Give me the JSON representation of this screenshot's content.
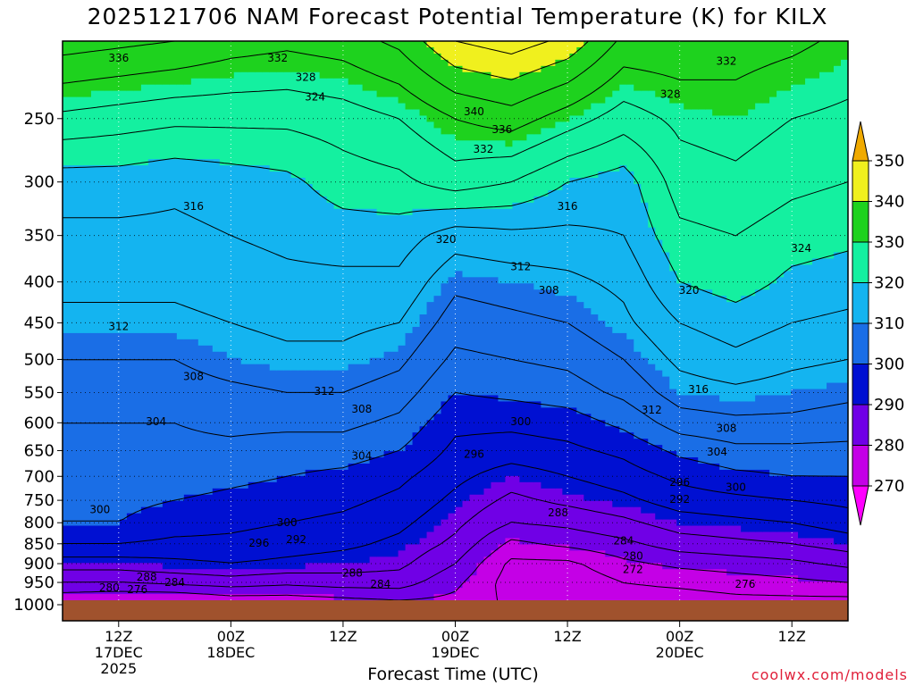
{
  "chart_data": {
    "type": "contour",
    "title": "2025121706 NAM Forecast Potential Temperature (K) for KILX",
    "xlabel": "Forecast Time (UTC)",
    "ylabel": "",
    "y_scale": "log",
    "ylim": [
      1000,
      200
    ],
    "y_ticks": [
      250,
      300,
      350,
      400,
      450,
      500,
      550,
      600,
      650,
      700,
      750,
      800,
      850,
      900,
      950,
      1000
    ],
    "x_ticks": [
      {
        "hour": 6,
        "lines": [
          "12Z",
          "17DEC",
          "2025"
        ]
      },
      {
        "hour": 18,
        "lines": [
          "00Z",
          "18DEC"
        ]
      },
      {
        "hour": 30,
        "lines": [
          "12Z"
        ]
      },
      {
        "hour": 42,
        "lines": [
          "00Z",
          "19DEC"
        ]
      },
      {
        "hour": 54,
        "lines": [
          "12Z"
        ]
      },
      {
        "hour": 66,
        "lines": [
          "00Z",
          "20DEC"
        ]
      },
      {
        "hour": 78,
        "lines": [
          "12Z"
        ]
      }
    ],
    "xlim": [
      0,
      84
    ],
    "colorbar": {
      "levels": [
        270,
        280,
        290,
        300,
        310,
        320,
        330,
        340,
        350
      ],
      "colors": [
        "#ff00ff",
        "#c400e6",
        "#7000e6",
        "#0010d2",
        "#1a6ee6",
        "#14b4f0",
        "#14f0a0",
        "#1ed21e",
        "#f0f01e",
        "#f0aa00"
      ]
    },
    "profiles": [
      {
        "hour": 0,
        "theta": {
          "1000": 277,
          "950": 284,
          "900": 290,
          "850": 296,
          "800": 300,
          "750": 301,
          "700": 302,
          "650": 303,
          "600": 304,
          "550": 306,
          "500": 308,
          "450": 311,
          "400": 313,
          "350": 315,
          "300": 318,
          "250": 327,
          "200": 338
        }
      },
      {
        "hour": 6,
        "theta": {
          "1000": 276,
          "950": 284,
          "900": 290,
          "850": 296,
          "800": 300,
          "750": 301,
          "700": 302,
          "650": 303,
          "600": 304,
          "550": 306,
          "500": 308,
          "450": 311,
          "400": 313,
          "350": 315,
          "300": 318,
          "250": 326,
          "200": 337
        }
      },
      {
        "hour": 12,
        "theta": {
          "1000": 276,
          "950": 285,
          "900": 291,
          "850": 295,
          "800": 298,
          "750": 300,
          "700": 302,
          "650": 303,
          "600": 304,
          "550": 306,
          "500": 308,
          "450": 311,
          "400": 313,
          "350": 315,
          "300": 317,
          "250": 325,
          "200": 336
        }
      },
      {
        "hour": 18,
        "theta": {
          "1000": 278,
          "950": 286,
          "900": 292,
          "850": 295,
          "800": 297,
          "750": 299,
          "700": 301,
          "650": 303,
          "600": 305,
          "550": 307,
          "500": 310,
          "450": 312,
          "400": 314,
          "350": 316,
          "300": 318,
          "250": 325,
          "200": 334
        }
      },
      {
        "hour": 24,
        "theta": {
          "1000": 278,
          "950": 285,
          "900": 291,
          "850": 294,
          "800": 296,
          "750": 298,
          "700": 300,
          "650": 302,
          "600": 305,
          "550": 308,
          "500": 311,
          "450": 313,
          "400": 315,
          "350": 317,
          "300": 319,
          "250": 325,
          "200": 333
        }
      },
      {
        "hour": 30,
        "theta": {
          "1000": 279,
          "950": 286,
          "900": 290,
          "850": 293,
          "800": 295,
          "750": 297,
          "700": 299,
          "650": 302,
          "600": 305,
          "550": 308,
          "500": 311,
          "450": 313,
          "400": 315,
          "350": 318,
          "300": 322,
          "250": 326,
          "200": 334
        }
      },
      {
        "hour": 36,
        "theta": {
          "1000": 280,
          "950": 286,
          "900": 289,
          "850": 291,
          "800": 293,
          "750": 295,
          "700": 297,
          "650": 300,
          "600": 303,
          "550": 306,
          "500": 309,
          "450": 312,
          "400": 315,
          "350": 318,
          "300": 323,
          "250": 328,
          "200": 337
        }
      },
      {
        "hour": 42,
        "theta": {
          "1000": 279,
          "950": 281,
          "900": 284,
          "850": 287,
          "800": 289,
          "750": 291,
          "700": 293,
          "650": 295,
          "600": 297,
          "550": 300,
          "500": 303,
          "450": 306,
          "400": 309,
          "350": 314,
          "300": 326,
          "250": 332,
          "200": 344
        }
      },
      {
        "hour": 48,
        "theta": {
          "1000": 275,
          "950": 274,
          "900": 275,
          "850": 279,
          "800": 284,
          "750": 287,
          "700": 290,
          "650": 294,
          "600": 297,
          "550": 301,
          "500": 304,
          "450": 307,
          "400": 310,
          "350": 315,
          "300": 324,
          "250": 334,
          "200": 346
        }
      },
      {
        "hour": 54,
        "theta": {
          "1000": 274,
          "950": 273,
          "900": 275,
          "850": 281,
          "800": 285,
          "750": 289,
          "700": 292,
          "650": 295,
          "600": 298,
          "550": 302,
          "500": 305,
          "450": 308,
          "400": 311,
          "350": 315,
          "300": 320,
          "250": 330,
          "200": 343
        }
      },
      {
        "hour": 60,
        "theta": {
          "1000": 274,
          "950": 276,
          "900": 279,
          "850": 283,
          "800": 287,
          "750": 291,
          "700": 294,
          "650": 297,
          "600": 301,
          "550": 305,
          "500": 308,
          "450": 311,
          "400": 313,
          "350": 316,
          "300": 318,
          "250": 326,
          "200": 335
        }
      },
      {
        "hour": 66,
        "theta": {
          "1000": 274,
          "950": 277,
          "900": 281,
          "850": 286,
          "800": 290,
          "750": 294,
          "700": 297,
          "650": 301,
          "600": 306,
          "550": 310,
          "500": 313,
          "450": 316,
          "400": 320,
          "350": 323,
          "300": 326,
          "250": 329,
          "200": 335
        }
      },
      {
        "hour": 72,
        "theta": {
          "1000": 275,
          "950": 278,
          "900": 282,
          "850": 287,
          "800": 291,
          "750": 295,
          "700": 299,
          "650": 303,
          "600": 307,
          "550": 311,
          "500": 315,
          "450": 318,
          "400": 322,
          "350": 324,
          "300": 327,
          "250": 330,
          "200": 334
        }
      },
      {
        "hour": 78,
        "theta": {
          "1000": 275,
          "950": 279,
          "900": 283,
          "850": 288,
          "800": 292,
          "750": 296,
          "700": 300,
          "650": 303,
          "600": 307,
          "550": 310,
          "500": 313,
          "450": 316,
          "400": 319,
          "350": 322,
          "300": 325,
          "250": 328,
          "200": 333
        }
      },
      {
        "hour": 84,
        "theta": {
          "1000": 275,
          "950": 280,
          "900": 285,
          "850": 290,
          "800": 294,
          "750": 297,
          "700": 300,
          "650": 303,
          "600": 306,
          "550": 309,
          "500": 312,
          "450": 315,
          "400": 318,
          "350": 321,
          "300": 324,
          "250": 327,
          "200": 331
        }
      }
    ],
    "contour_labels": [
      {
        "text": "336",
        "hour": 6,
        "p": 210
      },
      {
        "text": "332",
        "hour": 23,
        "p": 210
      },
      {
        "text": "328",
        "hour": 26,
        "p": 222
      },
      {
        "text": "324",
        "hour": 27,
        "p": 235
      },
      {
        "text": "340",
        "hour": 44,
        "p": 245
      },
      {
        "text": "336",
        "hour": 47,
        "p": 258
      },
      {
        "text": "332",
        "hour": 45,
        "p": 273
      },
      {
        "text": "332",
        "hour": 71,
        "p": 212
      },
      {
        "text": "328",
        "hour": 65,
        "p": 233
      },
      {
        "text": "316",
        "hour": 14,
        "p": 322
      },
      {
        "text": "320",
        "hour": 41,
        "p": 354
      },
      {
        "text": "316",
        "hour": 54,
        "p": 322
      },
      {
        "text": "312",
        "hour": 49,
        "p": 383
      },
      {
        "text": "308",
        "hour": 52,
        "p": 410
      },
      {
        "text": "324",
        "hour": 79,
        "p": 363
      },
      {
        "text": "320",
        "hour": 67,
        "p": 410
      },
      {
        "text": "312",
        "hour": 6,
        "p": 455
      },
      {
        "text": "308",
        "hour": 14,
        "p": 525
      },
      {
        "text": "312",
        "hour": 28,
        "p": 548
      },
      {
        "text": "308",
        "hour": 32,
        "p": 577
      },
      {
        "text": "304",
        "hour": 10,
        "p": 598
      },
      {
        "text": "304",
        "hour": 32,
        "p": 660
      },
      {
        "text": "300",
        "hour": 49,
        "p": 598
      },
      {
        "text": "296",
        "hour": 44,
        "p": 657
      },
      {
        "text": "316",
        "hour": 68,
        "p": 545
      },
      {
        "text": "312",
        "hour": 63,
        "p": 578
      },
      {
        "text": "308",
        "hour": 71,
        "p": 610
      },
      {
        "text": "304",
        "hour": 70,
        "p": 653
      },
      {
        "text": "296",
        "hour": 66,
        "p": 712
      },
      {
        "text": "300",
        "hour": 72,
        "p": 722
      },
      {
        "text": "292",
        "hour": 66,
        "p": 748
      },
      {
        "text": "300",
        "hour": 4,
        "p": 770
      },
      {
        "text": "288",
        "hour": 53,
        "p": 777
      },
      {
        "text": "300",
        "hour": 24,
        "p": 800
      },
      {
        "text": "296",
        "hour": 21,
        "p": 848
      },
      {
        "text": "292",
        "hour": 25,
        "p": 840
      },
      {
        "text": "284",
        "hour": 60,
        "p": 843
      },
      {
        "text": "280",
        "hour": 61,
        "p": 880
      },
      {
        "text": "272",
        "hour": 61,
        "p": 915
      },
      {
        "text": "288",
        "hour": 31,
        "p": 925
      },
      {
        "text": "288",
        "hour": 9,
        "p": 935
      },
      {
        "text": "284",
        "hour": 12,
        "p": 950
      },
      {
        "text": "284",
        "hour": 34,
        "p": 955
      },
      {
        "text": "280",
        "hour": 5,
        "p": 965
      },
      {
        "text": "276",
        "hour": 8,
        "p": 970
      },
      {
        "text": "276",
        "hour": 73,
        "p": 955
      }
    ],
    "ground_color": "#a0522d",
    "grid": true
  },
  "footer": {
    "credit": "coolwx.com/models"
  }
}
